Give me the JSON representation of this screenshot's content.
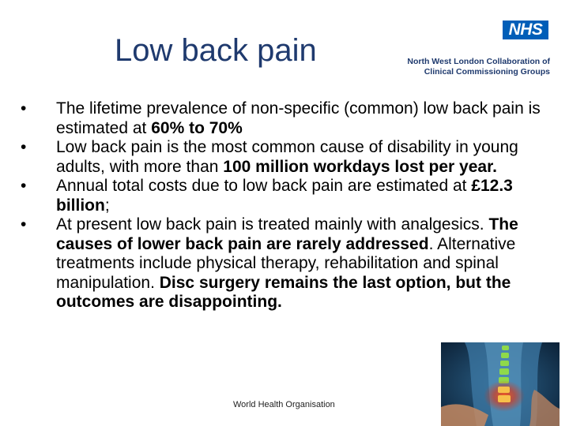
{
  "slide": {
    "title": "Low back pain",
    "logo": {
      "nhs_text": "NHS",
      "org_line_1": "North West London Collaboration of",
      "org_line_2": "Clinical Commissioning Groups"
    },
    "bullets": [
      {
        "segments": [
          {
            "text": "The lifetime prevalence of non-specific (common) low back pain is estimated at ",
            "bold": false
          },
          {
            "text": "60% to 70%",
            "bold": true
          }
        ]
      },
      {
        "segments": [
          {
            "text": "Low back pain is the most common cause of disability in young adults, with more than ",
            "bold": false
          },
          {
            "text": "100 million workdays lost per year.",
            "bold": true
          }
        ]
      },
      {
        "segments": [
          {
            "text": "Annual total costs due to low back pain are estimated at ",
            "bold": false
          },
          {
            "text": "£12.3 billion",
            "bold": true
          },
          {
            "text": ";",
            "bold": false
          }
        ]
      },
      {
        "segments": [
          {
            "text": "At present low back pain is treated mainly with analgesics. ",
            "bold": false
          },
          {
            "text": "The causes of lower back pain are rarely addressed",
            "bold": true
          },
          {
            "text": ". Alternative treatments include physical therapy, rehabilitation and spinal manipulation. ",
            "bold": false
          },
          {
            "text": "Disc surgery remains the last option, but the outcomes are disappointing.",
            "bold": true
          }
        ]
      }
    ],
    "bullet_glyph": "•",
    "footer": "World Health Organisation"
  }
}
